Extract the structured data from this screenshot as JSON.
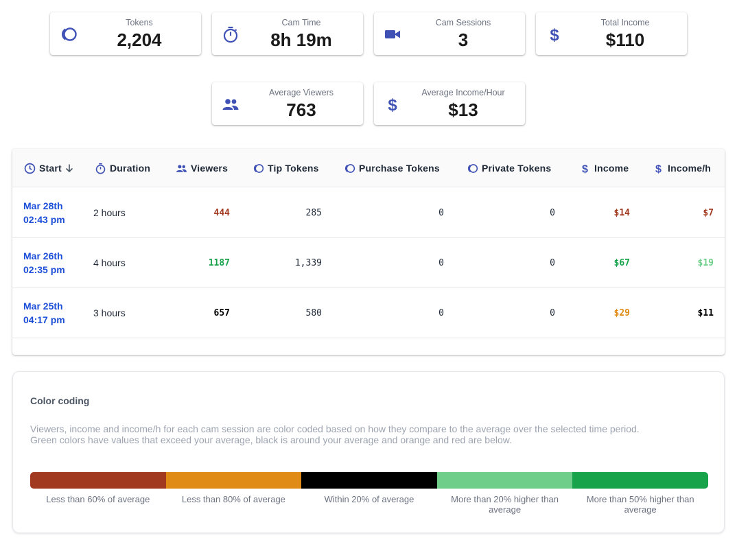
{
  "stats": [
    {
      "label": "Tokens",
      "value": "2,204",
      "icon": "tokens-icon"
    },
    {
      "label": "Cam Time",
      "value": "8h 19m",
      "icon": "timer-icon"
    },
    {
      "label": "Cam Sessions",
      "value": "3",
      "icon": "video-camera-icon"
    },
    {
      "label": "Total Income",
      "value": "$110",
      "icon": "dollar-icon"
    },
    {
      "label": "Average Viewers",
      "value": "763",
      "icon": "people-icon"
    },
    {
      "label": "Average Income/Hour",
      "value": "$13",
      "icon": "dollar-icon"
    }
  ],
  "table": {
    "headers": {
      "start": "Start",
      "duration": "Duration",
      "viewers": "Viewers",
      "tip_tokens": "Tip Tokens",
      "purchase_tokens": "Purchase Tokens",
      "private_tokens": "Private Tokens",
      "income": "Income",
      "income_h": "Income/h"
    },
    "rows": [
      {
        "date": "Mar 28th",
        "time": "02:43 pm",
        "duration": "2 hours",
        "viewers": "444",
        "tip": "285",
        "purchase": "0",
        "private": "0",
        "income": "$14",
        "income_h": "$7"
      },
      {
        "date": "Mar 26th",
        "time": "02:35 pm",
        "duration": "4 hours",
        "viewers": "1187",
        "tip": "1,339",
        "purchase": "0",
        "private": "0",
        "income": "$67",
        "income_h": "$19"
      },
      {
        "date": "Mar 25th",
        "time": "04:17 pm",
        "duration": "3 hours",
        "viewers": "657",
        "tip": "580",
        "purchase": "0",
        "private": "0",
        "income": "$29",
        "income_h": "$11"
      }
    ]
  },
  "legend": {
    "title": "Color coding",
    "description_1": "Viewers, income and income/h for each cam session are color coded based on how they compare to the average over the selected time period.",
    "description_2": "Green colors have values that exceed your average, black is around your average and orange and red are below.",
    "labels": [
      "Less than 60% of average",
      "Less than 80% of average",
      "Within 20% of average",
      "More than 20% higher than average",
      "More than 50% higher than average"
    ]
  },
  "colors": {
    "accent": "#3f51b5",
    "date_link": "#1d4ed8",
    "red": "#a0391f",
    "orange": "#df8b15",
    "black": "#000000",
    "light_green": "#6fcf8a",
    "green": "#16a34a"
  }
}
